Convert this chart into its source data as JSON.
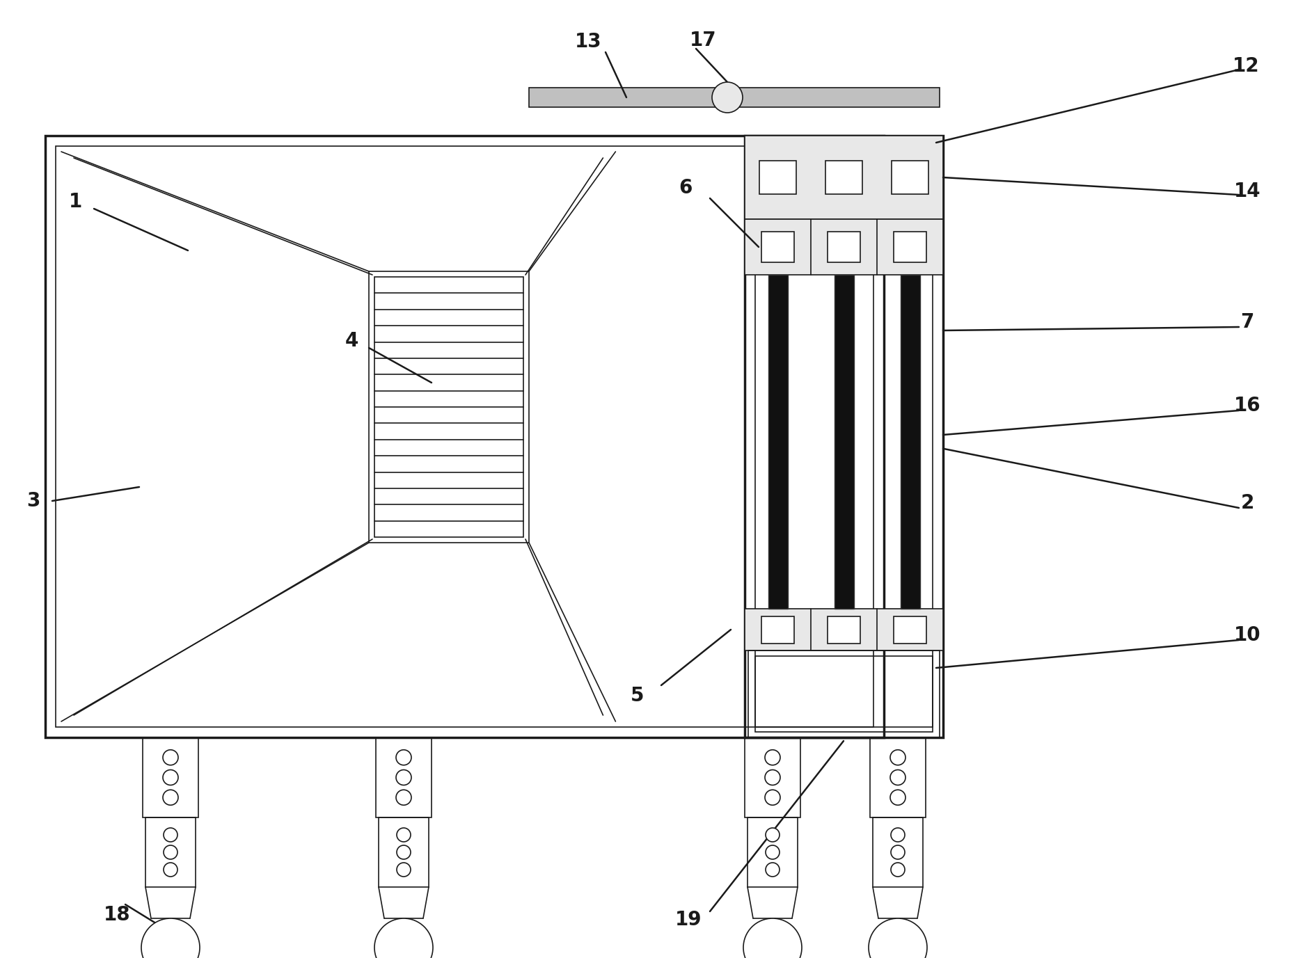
{
  "bg_color": "#ffffff",
  "line_color": "#1a1a1a",
  "lw_thick": 2.5,
  "lw_medium": 1.8,
  "lw_thin": 1.2,
  "label_fontsize": 20,
  "pipe_color": "#111111",
  "gray_fill": "#d0d0d0",
  "light_gray": "#e8e8e8",
  "mid_gray": "#c0c0c0"
}
